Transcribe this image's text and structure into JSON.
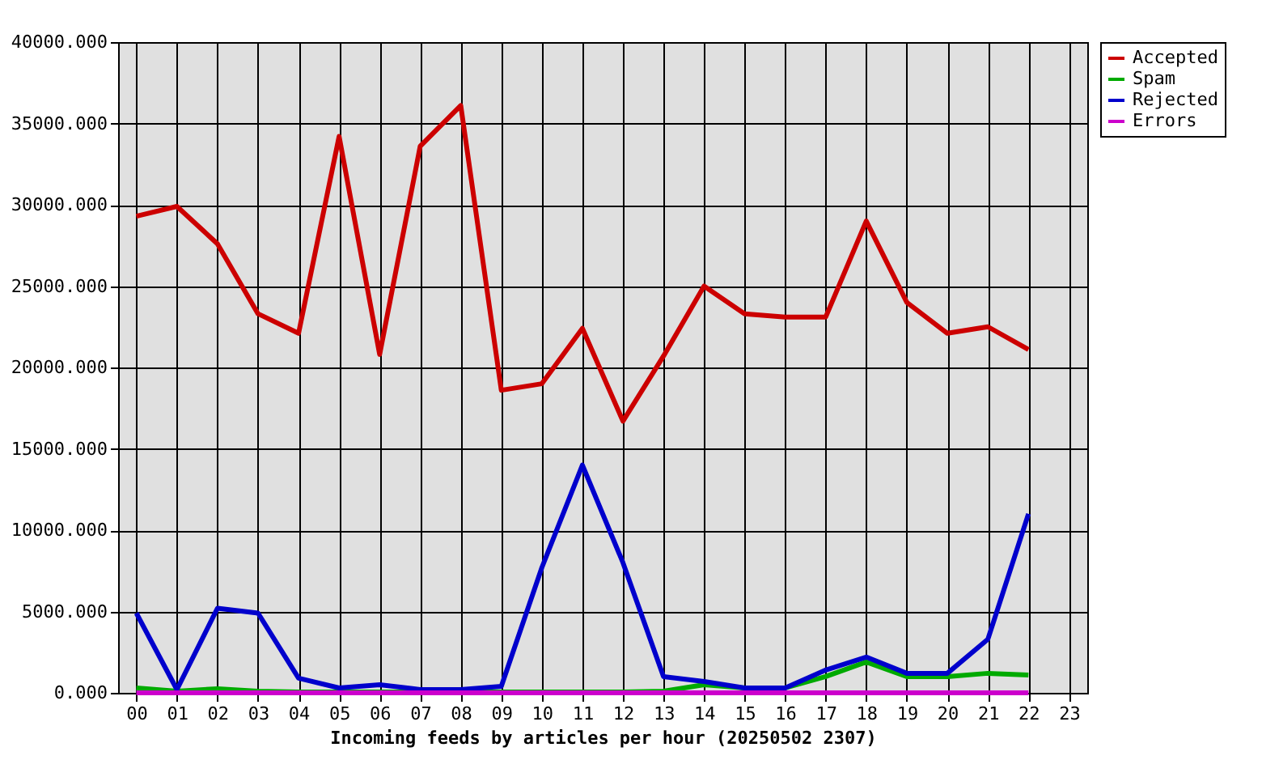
{
  "chart_data": {
    "type": "line",
    "xlabel": "Incoming feeds by articles per hour (20250502 2307)",
    "categories": [
      "00",
      "01",
      "02",
      "03",
      "04",
      "05",
      "06",
      "07",
      "08",
      "09",
      "10",
      "11",
      "12",
      "13",
      "14",
      "15",
      "16",
      "17",
      "18",
      "19",
      "20",
      "21",
      "22",
      "23"
    ],
    "series": [
      {
        "name": "Accepted",
        "color": "#cc0000",
        "values": [
          29300,
          29900,
          27600,
          23300,
          22100,
          34200,
          20800,
          33600,
          36100,
          18600,
          19000,
          22400,
          16700,
          20700,
          25000,
          23300,
          23100,
          23100,
          29000,
          24000,
          22100,
          22500,
          21100,
          null
        ]
      },
      {
        "name": "Spam",
        "color": "#00aa00",
        "values": [
          300,
          100,
          250,
          100,
          50,
          50,
          50,
          50,
          50,
          50,
          50,
          50,
          50,
          100,
          500,
          300,
          300,
          1000,
          1900,
          1000,
          1000,
          1200,
          1100,
          null
        ]
      },
      {
        "name": "Rejected",
        "color": "#0000cc",
        "values": [
          4900,
          200,
          5200,
          4900,
          900,
          300,
          500,
          200,
          200,
          400,
          7700,
          14000,
          8000,
          1000,
          700,
          300,
          300,
          1400,
          2200,
          1200,
          1200,
          3300,
          11000,
          null
        ]
      },
      {
        "name": "Errors",
        "color": "#cc00cc",
        "values": [
          0,
          0,
          0,
          0,
          0,
          0,
          0,
          0,
          0,
          0,
          0,
          0,
          0,
          0,
          0,
          0,
          0,
          0,
          0,
          0,
          0,
          0,
          0,
          null
        ]
      }
    ],
    "ylim": [
      0,
      40000
    ],
    "yticks": [
      {
        "value": 0,
        "label": "0.000"
      },
      {
        "value": 5000,
        "label": "5000.000"
      },
      {
        "value": 10000,
        "label": "10000.000"
      },
      {
        "value": 15000,
        "label": "15000.000"
      },
      {
        "value": 20000,
        "label": "20000.000"
      },
      {
        "value": 25000,
        "label": "25000.000"
      },
      {
        "value": 30000,
        "label": "30000.000"
      },
      {
        "value": 35000,
        "label": "35000.000"
      },
      {
        "value": 40000,
        "label": "40000.000"
      }
    ],
    "grid": true,
    "legend": "top right"
  }
}
